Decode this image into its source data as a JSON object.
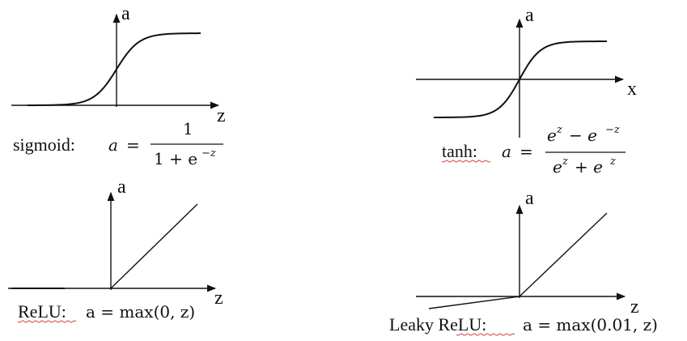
{
  "colors": {
    "ink": "#111111",
    "axis": "#111111",
    "spellcheck_underline": "#d04040",
    "background": "#ffffff"
  },
  "panels": {
    "sigmoid": {
      "y_axis_label": "a",
      "x_axis_label": "z",
      "name": "sigmoid:",
      "lhs": "a",
      "equals": "=",
      "numerator": "1",
      "denominator_base": "1 + e",
      "denominator_exp": "−z"
    },
    "tanh": {
      "y_axis_label": "a",
      "x_axis_label": "x",
      "name": "tanh:",
      "lhs": "a",
      "equals": "=",
      "num_e1": "e",
      "num_exp1": "z",
      "num_minus": "− e",
      "num_exp2": "−z",
      "den_e1": "e",
      "den_exp1": "z",
      "den_plus": "+ e",
      "den_exp2": "z"
    },
    "relu": {
      "y_axis_label": "a",
      "x_axis_label": "z",
      "name": "ReLU:",
      "formula": "a = max(0, z)"
    },
    "leaky_relu": {
      "y_axis_label": "a",
      "x_axis_label": "z",
      "name": "Leaky ReLU:",
      "formula": "a = max(0.01, z)"
    }
  }
}
